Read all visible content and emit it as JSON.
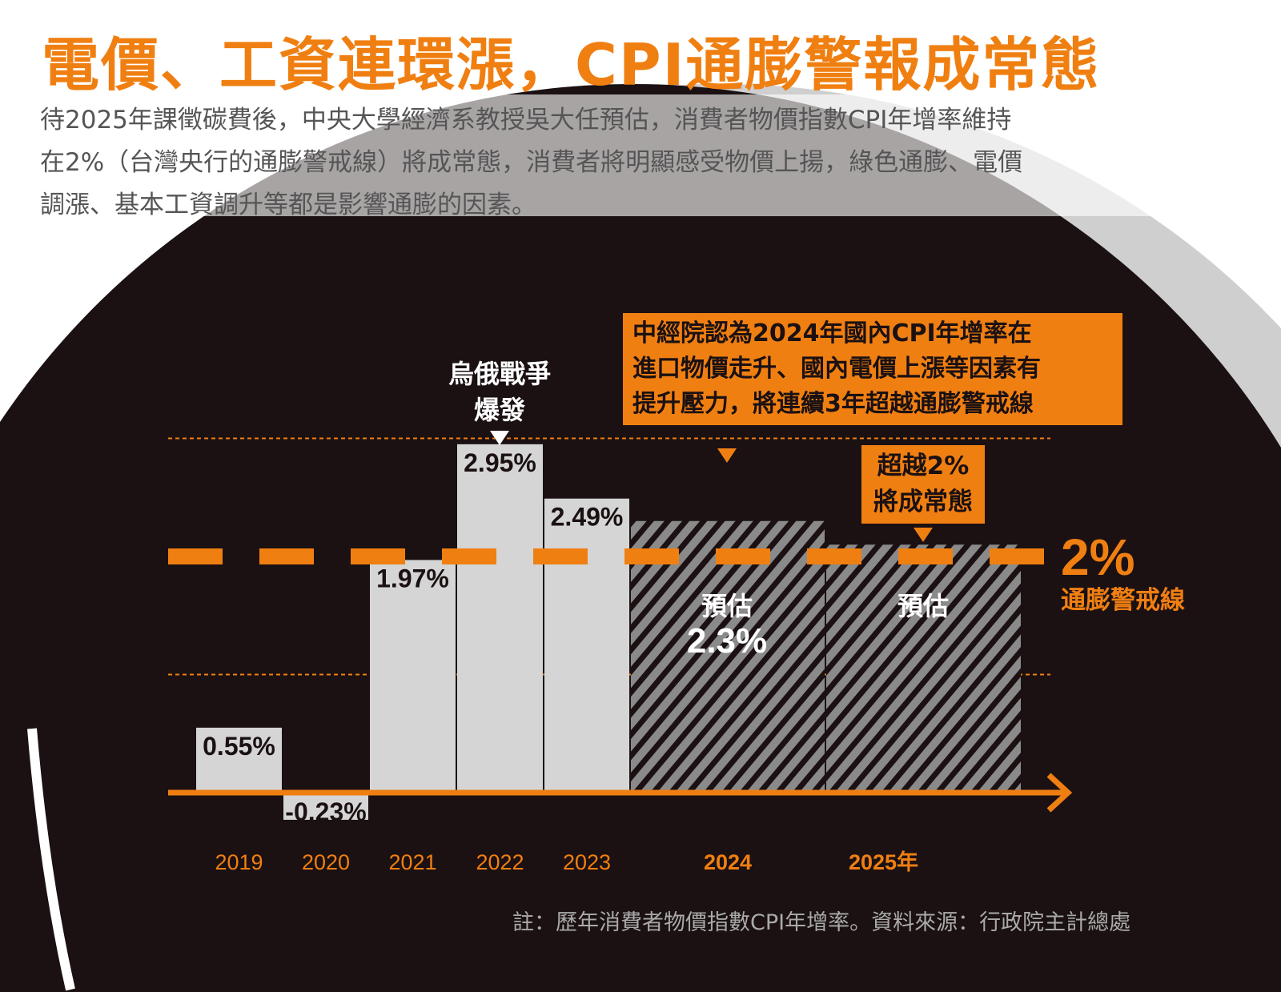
{
  "title": "電價、工資連環漲，CPI通膨警報成常態",
  "intro": [
    "待2025年課徵碳費後，中央大學經濟系教授吳大任預估，消費者物價指數CPI年增率維持",
    "在2%（台灣央行的通膨警戒線）將成常態，消費者將明顯感受物價上揚，綠色通膨、電價",
    "調漲、基本工資調升等都是影響通膨的因素。"
  ],
  "annotations": {
    "war": [
      "烏俄戰爭",
      "爆發"
    ],
    "callout_main": [
      "中經院認為2024年國內CPI年增率在",
      "進口物價走升、國內電價上漲等因素有",
      "提升壓力，將連續3年超越通膨警戒線"
    ],
    "callout_2pct": [
      "超越2%",
      "將成常態"
    ],
    "threshold_value": "2%",
    "threshold_label": "通膨警戒線",
    "forecast_label": "預估"
  },
  "note": "註：歷年消費者物價指數CPI年增率。資料來源：行政院主計總處",
  "colors": {
    "accent": "#f07f12",
    "background": "#1b1112",
    "bar": "#d5d5d5",
    "ring": "#cfcfcf"
  },
  "chart_data": {
    "type": "bar",
    "categories": [
      "2019",
      "2020",
      "2021",
      "2022",
      "2023",
      "2024",
      "2025年"
    ],
    "values": [
      0.55,
      -0.23,
      1.97,
      2.95,
      2.49,
      2.3,
      2.1
    ],
    "value_labels": [
      "0.55%",
      "-0.23%",
      "1.97%",
      "2.95%",
      "2.49%",
      "2.3%",
      ""
    ],
    "forecast": [
      false,
      false,
      false,
      false,
      false,
      true,
      true
    ],
    "threshold": 2,
    "reference_lines": [
      1,
      3
    ],
    "ylim": [
      -0.4,
      3.2
    ],
    "grid": false
  }
}
